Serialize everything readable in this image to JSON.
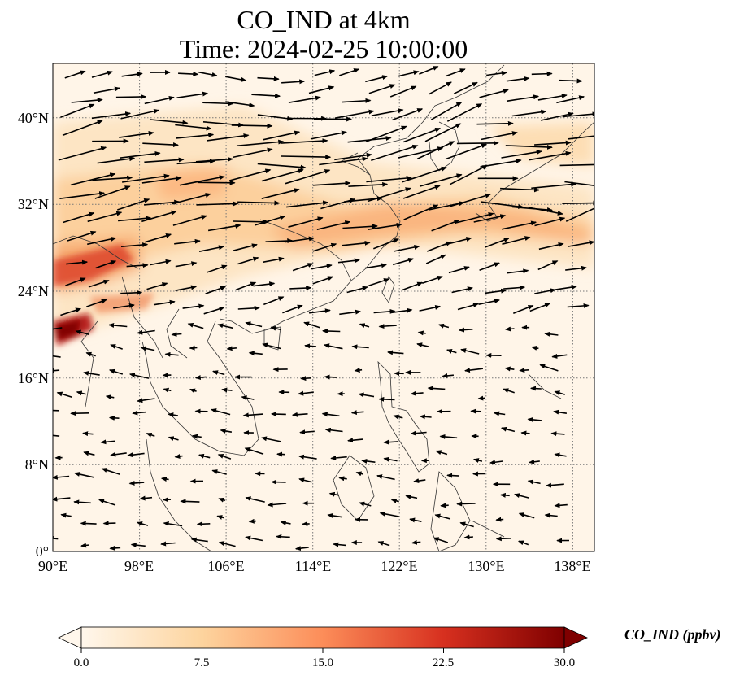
{
  "title": {
    "line1": "CO_IND at 4km",
    "line2": "Time: 2024-02-25 10:00:00"
  },
  "map": {
    "lon_range": [
      90,
      140
    ],
    "lat_range": [
      0,
      45
    ],
    "lat_ticks": [
      "0°",
      "8°N",
      "16°N",
      "24°N",
      "32°N",
      "40°N"
    ],
    "lon_ticks": [
      "90°E",
      "98°E",
      "106°E",
      "114°E",
      "122°E",
      "130°E",
      "138°E"
    ],
    "gridlines": true,
    "field": "CO_IND",
    "wind_vectors": true
  },
  "colorbar": {
    "label": "CO_IND (ppbv)",
    "ticks": [
      "0.0",
      "7.5",
      "15.0",
      "22.5",
      "30.0"
    ],
    "range": [
      0,
      30
    ],
    "colormap": "OrRd",
    "colors": [
      "#fff7ec",
      "#fdd49e",
      "#fc8d59",
      "#d7301f",
      "#7f0000"
    ],
    "extend": "both"
  }
}
